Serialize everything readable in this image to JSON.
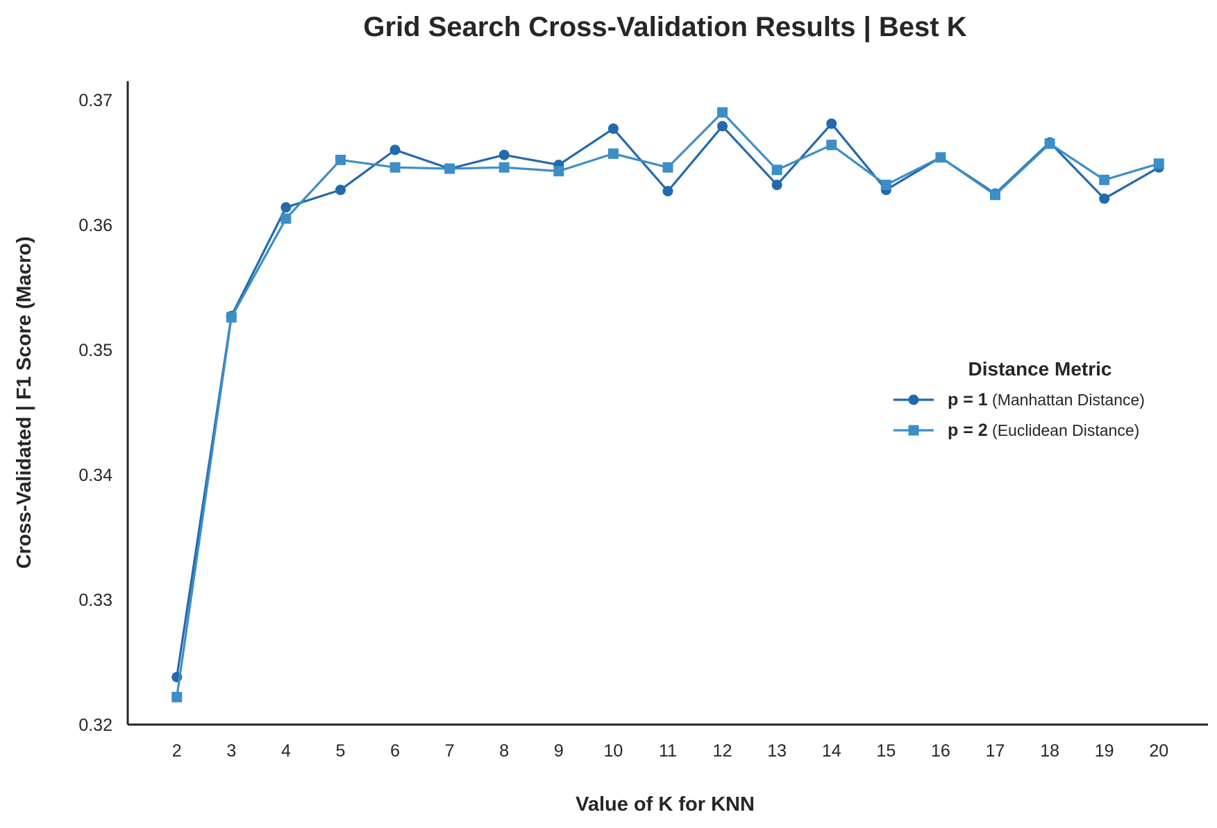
{
  "chart_data": {
    "type": "line",
    "title": "Grid Search Cross-Validation Results | Best K",
    "xlabel": "Value of K for KNN",
    "ylabel": "Cross-Validated | F1 Score (Macro)",
    "x": [
      2,
      3,
      4,
      5,
      6,
      7,
      8,
      9,
      10,
      11,
      12,
      13,
      14,
      15,
      16,
      17,
      18,
      19,
      20
    ],
    "x_tick_labels": [
      "2",
      "3",
      "4",
      "5",
      "6",
      "7",
      "8",
      "9",
      "10",
      "11",
      "12",
      "13",
      "14",
      "15",
      "16",
      "17",
      "18",
      "19",
      "20"
    ],
    "ylim": [
      0.32,
      0.3715
    ],
    "y_ticks": [
      0.32,
      0.33,
      0.34,
      0.35,
      0.36,
      0.37
    ],
    "y_tick_labels": [
      "0.32",
      "0.33",
      "0.34",
      "0.35",
      "0.36",
      "0.37"
    ],
    "grid": false,
    "legend": {
      "title": "Distance Metric",
      "placement": "center-right",
      "entries": [
        {
          "bold": "p = 1",
          "text": " (Manhattan Distance)"
        },
        {
          "bold": "p = 2",
          "text": " (Euclidean Distance)"
        }
      ]
    },
    "series": [
      {
        "name": "p = 1 (Manhattan Distance)",
        "marker": "circle",
        "color": "#2369ad",
        "values": [
          0.3238,
          0.3527,
          0.3614,
          0.3628,
          0.366,
          0.3645,
          0.3656,
          0.3648,
          0.3677,
          0.3627,
          0.3679,
          0.3632,
          0.3681,
          0.3628,
          0.3654,
          0.3625,
          0.3666,
          0.3621,
          0.3646
        ]
      },
      {
        "name": "p = 2 (Euclidean Distance)",
        "marker": "square",
        "color": "#3d8ec7",
        "values": [
          0.3222,
          0.3526,
          0.3605,
          0.3652,
          0.3646,
          0.3645,
          0.3646,
          0.3643,
          0.3657,
          0.3646,
          0.369,
          0.3644,
          0.3664,
          0.3632,
          0.3654,
          0.3624,
          0.3665,
          0.3636,
          0.3649
        ]
      }
    ]
  }
}
